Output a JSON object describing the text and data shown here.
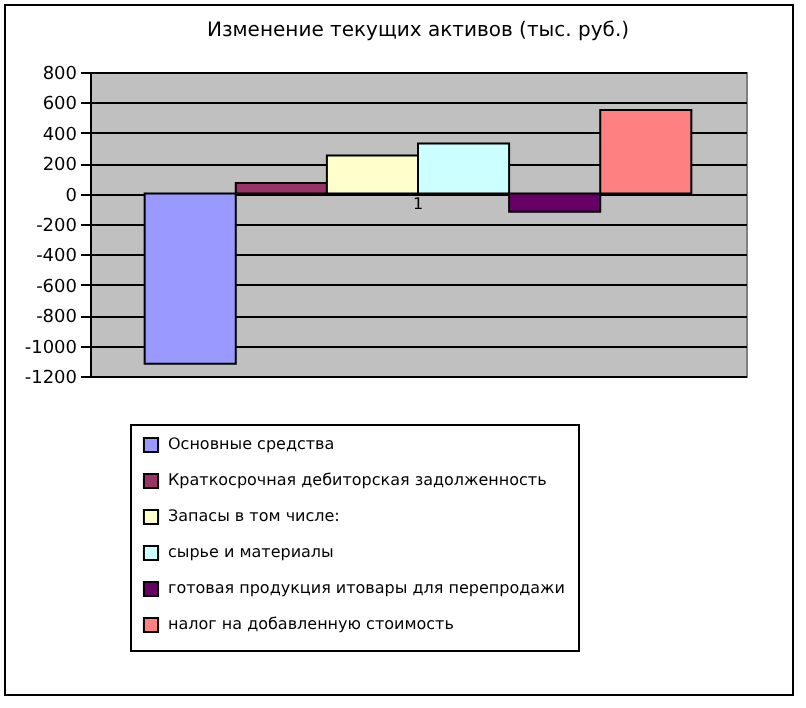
{
  "chart_data": {
    "type": "bar",
    "title": "Изменение текущих активов (тыс. руб.)",
    "categories": [
      "1"
    ],
    "series": [
      {
        "name": "Основные средства",
        "color": "#9999ff",
        "values": [
          -1120
        ]
      },
      {
        "name": "Краткосрочная дебиторская задолженность",
        "color": "#993366",
        "values": [
          70
        ]
      },
      {
        "name": "Запасы в том числе:",
        "color": "#ffffcc",
        "values": [
          250
        ]
      },
      {
        "name": "сырье и материалы",
        "color": "#ccffff",
        "values": [
          330
        ]
      },
      {
        "name": "готовая продукция итовары для перепродажи",
        "color": "#660066",
        "values": [
          -120
        ]
      },
      {
        "name": "налог на добавленную стоимость",
        "color": "#ff8080",
        "values": [
          550
        ]
      }
    ],
    "ylim": [
      -1200,
      800
    ],
    "yticks": [
      -1200,
      -1000,
      -800,
      -600,
      -400,
      -200,
      0,
      200,
      400,
      600,
      800
    ],
    "grid": "y",
    "legend": "bottom"
  }
}
